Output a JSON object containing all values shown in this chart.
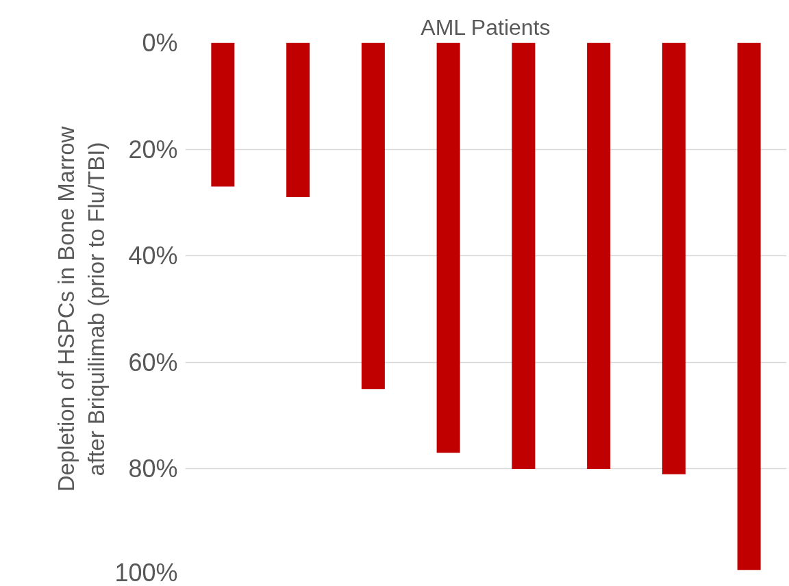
{
  "chart_data": {
    "type": "bar",
    "title": "AML Patients",
    "ylabel": "Depletion of HSPCs in Bone Marrow after Briquilimab (prior to Flu/TBI)",
    "categories": [
      null,
      null,
      null,
      null,
      null,
      null,
      null,
      null
    ],
    "values": [
      27,
      29,
      65,
      77,
      80,
      80,
      81,
      99
    ],
    "color": "#c00000",
    "ylim": [
      100,
      0
    ],
    "yticks": [
      {
        "value": 0,
        "label": "0%"
      },
      {
        "value": 20,
        "label": "20%"
      },
      {
        "value": 40,
        "label": "40%"
      },
      {
        "value": 60,
        "label": "60%"
      },
      {
        "value": 80,
        "label": "80%"
      },
      {
        "value": 100,
        "label": "100%"
      }
    ],
    "grid": "y"
  }
}
